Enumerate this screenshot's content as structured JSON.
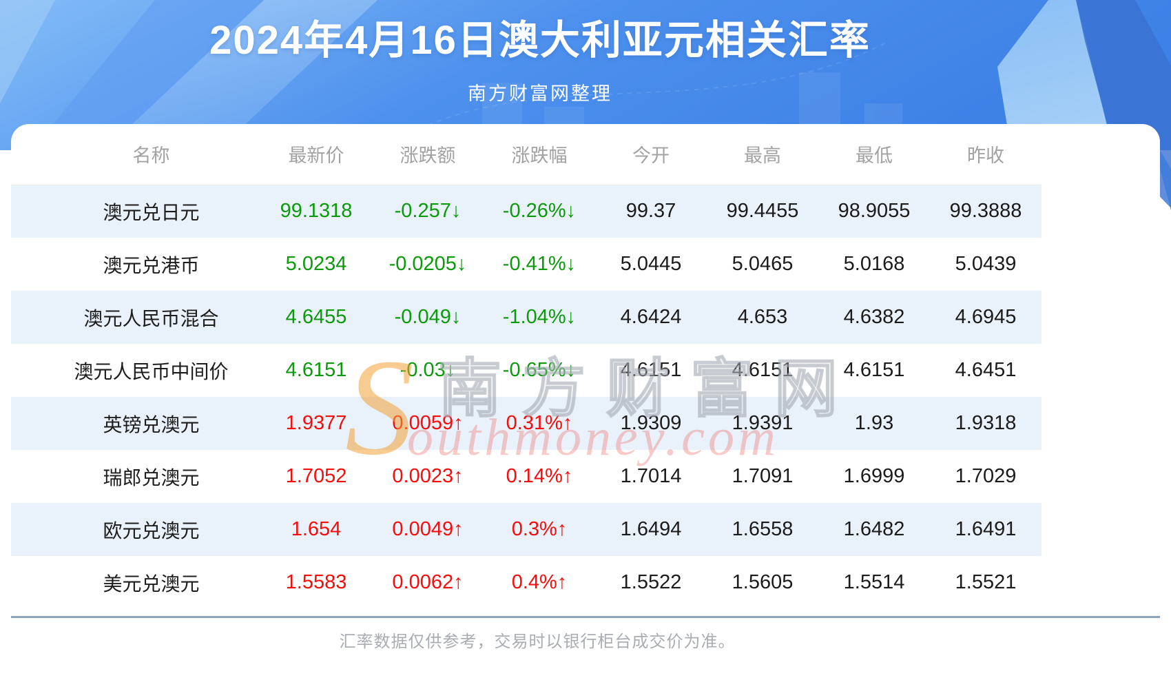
{
  "header": {
    "title": "2024年4月16日澳大利亚元相关汇率",
    "subtitle": "南方财富网整理"
  },
  "watermark": {
    "s_letter": "S",
    "cn": "南方财富网",
    "en": "outhmoney.com"
  },
  "footer": {
    "note": "汇率数据仅供参考，交易时以银行柜台成交价为准。"
  },
  "colors": {
    "banner_blue_light": "#83bcf7",
    "banner_blue_deep": "#3d81e6",
    "row_stripe_blue": "#e9f1fb",
    "down_green": "#0a9a0a",
    "up_red": "#f90b0b",
    "header_gray": "#a2a2a2",
    "divider_gray_blue": "#8ba3bd"
  },
  "table": {
    "columns": [
      "名称",
      "最新价",
      "涨跌额",
      "涨跌幅",
      "今开",
      "最高",
      "最低",
      "昨收"
    ],
    "column_keys": [
      "name",
      "latest",
      "change",
      "change_pct",
      "open",
      "high",
      "low",
      "prev_close"
    ],
    "rows": [
      {
        "name": "澳元兑日元",
        "latest": "99.1318",
        "change": "-0.257↓",
        "change_pct": "-0.26%↓",
        "open": "99.37",
        "high": "99.4455",
        "low": "98.9055",
        "prev_close": "99.3888",
        "trend": "down"
      },
      {
        "name": "澳元兑港币",
        "latest": "5.0234",
        "change": "-0.0205↓",
        "change_pct": "-0.41%↓",
        "open": "5.0445",
        "high": "5.0465",
        "low": "5.0168",
        "prev_close": "5.0439",
        "trend": "down"
      },
      {
        "name": "澳元人民币混合",
        "latest": "4.6455",
        "change": "-0.049↓",
        "change_pct": "-1.04%↓",
        "open": "4.6424",
        "high": "4.653",
        "low": "4.6382",
        "prev_close": "4.6945",
        "trend": "down"
      },
      {
        "name": "澳元人民币中间价",
        "latest": "4.6151",
        "change": "-0.03↓",
        "change_pct": "-0.65%↓",
        "open": "4.6151",
        "high": "4.6151",
        "low": "4.6151",
        "prev_close": "4.6451",
        "trend": "down"
      },
      {
        "name": "英镑兑澳元",
        "latest": "1.9377",
        "change": "0.0059↑",
        "change_pct": "0.31%↑",
        "open": "1.9309",
        "high": "1.9391",
        "low": "1.93",
        "prev_close": "1.9318",
        "trend": "up"
      },
      {
        "name": "瑞郎兑澳元",
        "latest": "1.7052",
        "change": "0.0023↑",
        "change_pct": "0.14%↑",
        "open": "1.7014",
        "high": "1.7091",
        "low": "1.6999",
        "prev_close": "1.7029",
        "trend": "up"
      },
      {
        "name": "欧元兑澳元",
        "latest": "1.654",
        "change": "0.0049↑",
        "change_pct": "0.3%↑",
        "open": "1.6494",
        "high": "1.6558",
        "low": "1.6482",
        "prev_close": "1.6491",
        "trend": "up"
      },
      {
        "name": "美元兑澳元",
        "latest": "1.5583",
        "change": "0.0062↑",
        "change_pct": "0.4%↑",
        "open": "1.5522",
        "high": "1.5605",
        "low": "1.5514",
        "prev_close": "1.5521",
        "trend": "up"
      }
    ]
  }
}
